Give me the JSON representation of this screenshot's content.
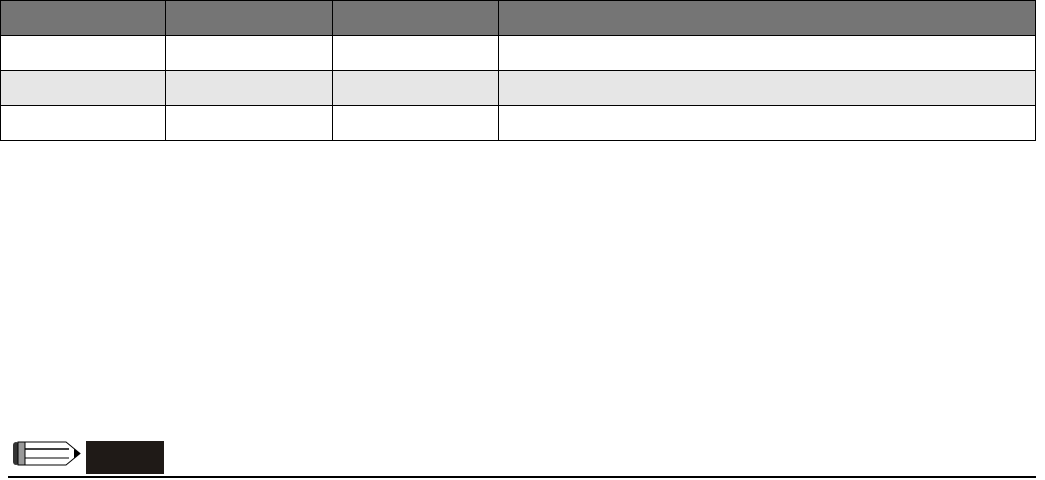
{
  "table": {
    "header": [
      "",
      "",
      "",
      ""
    ],
    "rows": [
      [
        "",
        "",
        "",
        ""
      ],
      [
        "",
        "",
        "",
        ""
      ],
      [
        "",
        "",
        "",
        ""
      ]
    ]
  },
  "note": {
    "icon": "pencil-icon",
    "label": ""
  },
  "colors": {
    "header_bg": "#757575",
    "alt_row_bg": "#e6e6e6",
    "note_box": "#1f1a17"
  }
}
